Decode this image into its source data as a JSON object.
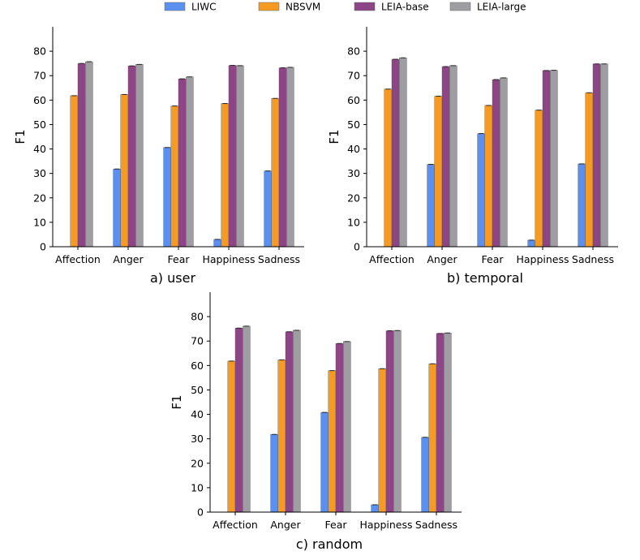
{
  "legend": {
    "entries": [
      {
        "name": "LIWC",
        "color": "#5b8ff0"
      },
      {
        "name": "NBSVM",
        "color": "#f59a23"
      },
      {
        "name": "LEIA-base",
        "color": "#8e4585"
      },
      {
        "name": "LEIA-large",
        "color": "#9e9ea2"
      }
    ]
  },
  "chart_data": [
    {
      "type": "bar",
      "caption": "a) user",
      "ylabel": "F1",
      "ylim": [
        0,
        90
      ],
      "yticks": [
        0,
        10,
        20,
        30,
        40,
        50,
        60,
        70,
        80
      ],
      "categories": [
        "Affection",
        "Anger",
        "Fear",
        "Happiness",
        "Sadness"
      ],
      "series": [
        {
          "name": "LIWC",
          "values": [
            0,
            31.8,
            40.6,
            3.0,
            31.0
          ]
        },
        {
          "name": "NBSVM",
          "values": [
            61.8,
            62.3,
            57.6,
            58.6,
            60.7
          ]
        },
        {
          "name": "LEIA-base",
          "values": [
            75.0,
            74.0,
            68.7,
            74.2,
            73.2
          ]
        },
        {
          "name": "LEIA-large",
          "values": [
            75.7,
            74.6,
            69.5,
            74.1,
            73.4
          ]
        }
      ]
    },
    {
      "type": "bar",
      "caption": "b) temporal",
      "ylabel": "F1",
      "ylim": [
        0,
        90
      ],
      "yticks": [
        0,
        10,
        20,
        30,
        40,
        50,
        60,
        70,
        80
      ],
      "categories": [
        "Affection",
        "Anger",
        "Fear",
        "Happiness",
        "Sadness"
      ],
      "series": [
        {
          "name": "LIWC",
          "values": [
            0,
            33.7,
            46.3,
            2.7,
            33.9
          ]
        },
        {
          "name": "NBSVM",
          "values": [
            64.5,
            61.6,
            57.8,
            55.9,
            63.0
          ]
        },
        {
          "name": "LEIA-base",
          "values": [
            76.7,
            73.7,
            68.4,
            72.1,
            74.8
          ]
        },
        {
          "name": "LEIA-large",
          "values": [
            77.3,
            74.1,
            69.1,
            72.2,
            74.8
          ]
        }
      ]
    },
    {
      "type": "bar",
      "caption": "c) random",
      "ylabel": "F1",
      "ylim": [
        0,
        90
      ],
      "yticks": [
        0,
        10,
        20,
        30,
        40,
        50,
        60,
        70,
        80
      ],
      "categories": [
        "Affection",
        "Anger",
        "Fear",
        "Happiness",
        "Sadness"
      ],
      "series": [
        {
          "name": "LIWC",
          "values": [
            0,
            31.8,
            40.8,
            3.0,
            30.6
          ]
        },
        {
          "name": "NBSVM",
          "values": [
            61.8,
            62.3,
            57.9,
            58.7,
            60.7
          ]
        },
        {
          "name": "LEIA-base",
          "values": [
            75.3,
            73.8,
            69.0,
            74.2,
            73.1
          ]
        },
        {
          "name": "LEIA-large",
          "values": [
            76.1,
            74.4,
            69.8,
            74.3,
            73.3
          ]
        }
      ]
    }
  ]
}
